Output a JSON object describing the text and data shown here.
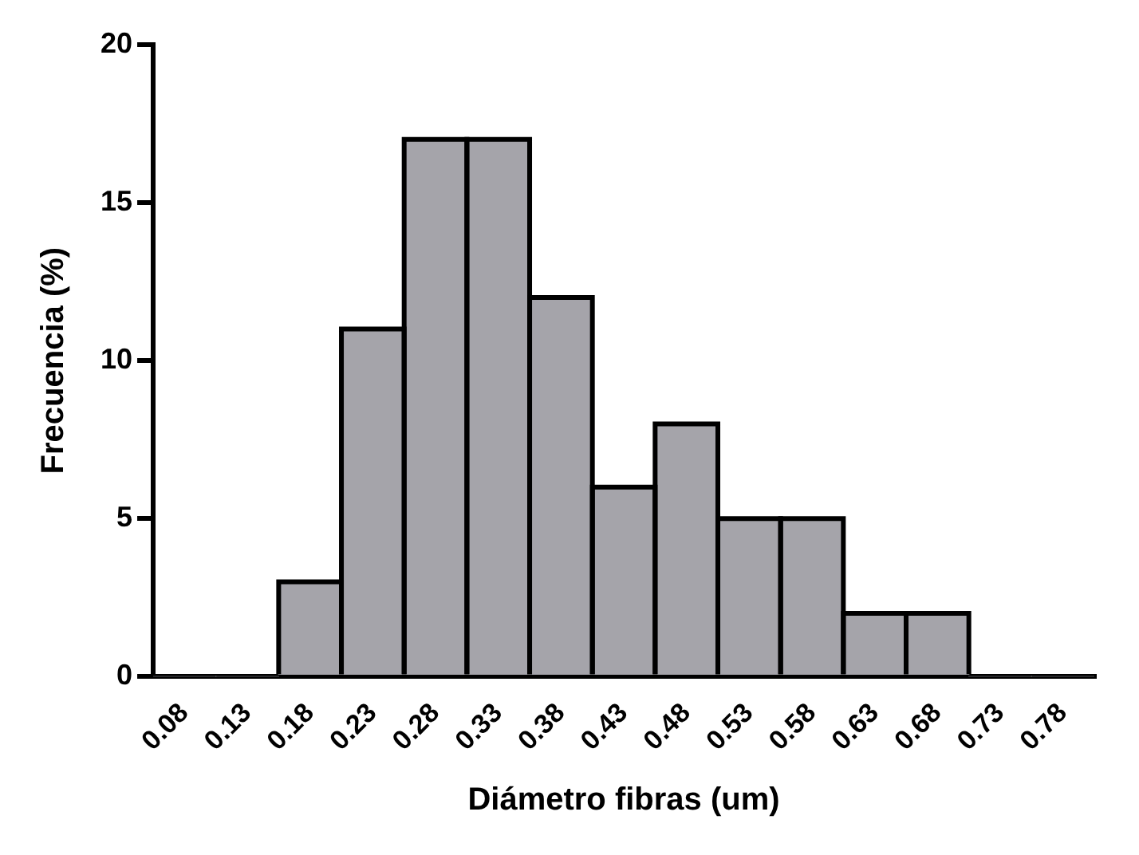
{
  "chart_data": {
    "type": "bar",
    "xlabel": "Diámetro fibras (um)",
    "ylabel": "Frecuencia (%)",
    "categories": [
      "0.08",
      "0.13",
      "0.18",
      "0.23",
      "0.28",
      "0.33",
      "0.38",
      "0.43",
      "0.48",
      "0.53",
      "0.58",
      "0.63",
      "0.68",
      "0.73",
      "0.78"
    ],
    "values": [
      0,
      0,
      3,
      11,
      17,
      17,
      12,
      6,
      8,
      5,
      5,
      2,
      2,
      0,
      0
    ],
    "color": "#a5a4aa",
    "ylim": [
      0,
      20
    ],
    "yticks": [
      0,
      5,
      10,
      15,
      20
    ],
    "grid": false,
    "legend": false
  }
}
